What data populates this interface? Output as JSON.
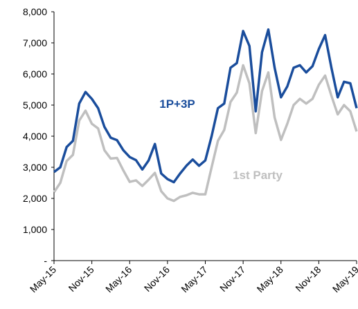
{
  "chart_data": {
    "type": "line",
    "categories": [
      "May-15",
      null,
      null,
      null,
      null,
      null,
      "Nov-15",
      null,
      null,
      null,
      null,
      null,
      "May-16",
      null,
      null,
      null,
      null,
      null,
      "Nov-16",
      null,
      null,
      null,
      null,
      null,
      "May-17",
      null,
      null,
      null,
      null,
      null,
      "Nov-17",
      null,
      null,
      null,
      null,
      null,
      "May-18",
      null,
      null,
      null,
      null,
      null,
      "Nov-18",
      null,
      null,
      null,
      null,
      null,
      "May-19"
    ],
    "series": [
      {
        "name": "1P+3P",
        "color": "#1a4d9c",
        "values": [
          2850,
          3000,
          3650,
          3850,
          5050,
          5420,
          5200,
          4900,
          4300,
          3950,
          3870,
          3550,
          3330,
          3230,
          2930,
          3220,
          3750,
          2800,
          2620,
          2520,
          2800,
          3050,
          3250,
          3050,
          3220,
          4000,
          4900,
          5050,
          6200,
          6350,
          7380,
          6900,
          4800,
          6700,
          7430,
          6200,
          5250,
          5600,
          6200,
          6280,
          6050,
          6250,
          6800,
          7250,
          6200,
          5250,
          5750,
          5700,
          4900
        ]
      },
      {
        "name": "1st Party",
        "color": "#bfbfbf",
        "values": [
          2200,
          2500,
          3200,
          3400,
          4500,
          4820,
          4400,
          4250,
          3550,
          3280,
          3300,
          2900,
          2530,
          2580,
          2400,
          2600,
          2820,
          2230,
          2000,
          1920,
          2050,
          2100,
          2180,
          2130,
          2130,
          3000,
          3850,
          4200,
          5100,
          5400,
          6280,
          5700,
          4100,
          5450,
          6050,
          4600,
          3880,
          4400,
          5000,
          5200,
          5050,
          5200,
          5650,
          5950,
          5300,
          4700,
          5000,
          4800,
          4150
        ]
      }
    ],
    "ylim": [
      0,
      8000
    ],
    "yticks": [
      {
        "value": 0,
        "label": "-"
      },
      {
        "value": 1000,
        "label": "1,000"
      },
      {
        "value": 2000,
        "label": "2,000"
      },
      {
        "value": 3000,
        "label": "3,000"
      },
      {
        "value": 4000,
        "label": "4,000"
      },
      {
        "value": 5000,
        "label": "5,000"
      },
      {
        "value": 6000,
        "label": "6,000"
      },
      {
        "value": 7000,
        "label": "7,000"
      },
      {
        "value": 8000,
        "label": "8,000"
      }
    ],
    "grid": false
  }
}
